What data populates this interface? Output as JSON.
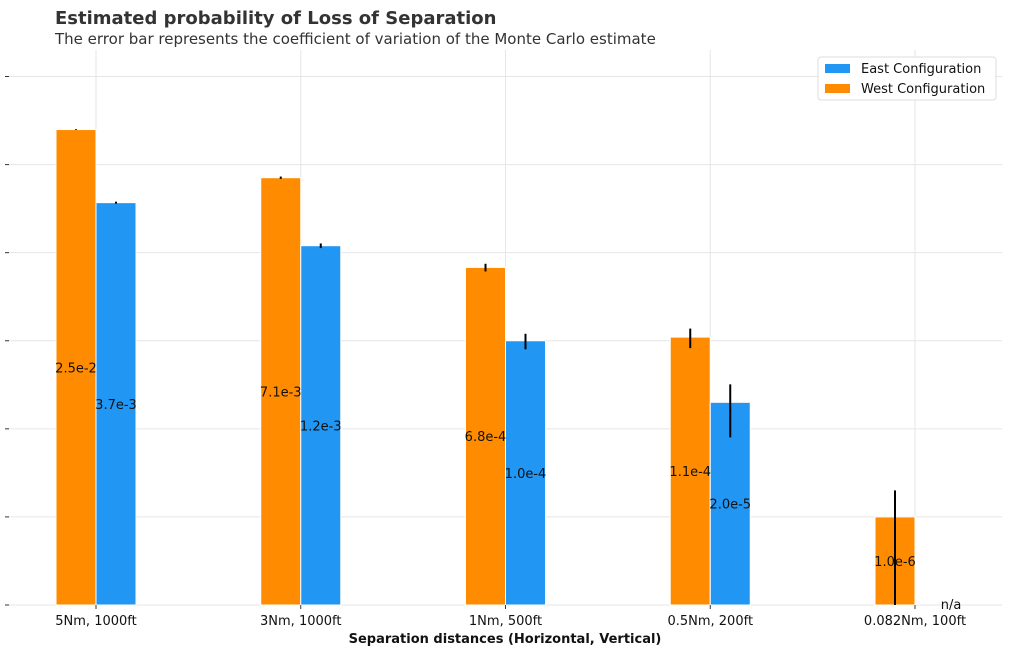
{
  "chart_data": {
    "type": "bar",
    "title": "Estimated probability of Loss of Separation",
    "subtitle": "The error bar represents the coefficient of variation of the Monte Carlo estimate",
    "xlabel": "Separation distances (Horizontal, Vertical)",
    "ylabel": "",
    "y_scale": "log",
    "ylim": [
      1e-07,
      0.2
    ],
    "grid": true,
    "legend_position": "top-right",
    "categories": [
      "5Nm, 1000ft",
      "3Nm, 1000ft",
      "1Nm, 500ft",
      "0.5Nm, 200ft",
      "0.082Nm, 100ft"
    ],
    "series": [
      {
        "name": "West Configuration",
        "color": "#ff8c00",
        "values": [
          0.025,
          0.0071,
          0.00068,
          0.00011,
          1e-06
        ],
        "labels": [
          "2.5e-2",
          "7.1e-3",
          "6.8e-4",
          "1.1e-4",
          "1.0e-6"
        ],
        "cv": [
          0.01,
          0.03,
          0.1,
          0.25,
          1.0
        ]
      },
      {
        "name": "East Configuration",
        "color": "#2196f3",
        "values": [
          0.0037,
          0.0012,
          0.0001,
          2e-05,
          null
        ],
        "labels": [
          "3.7e-3",
          "1.2e-3",
          "1.0e-4",
          "2.0e-5",
          "n/a"
        ],
        "cv": [
          0.025,
          0.06,
          0.2,
          0.6,
          null
        ]
      }
    ]
  }
}
